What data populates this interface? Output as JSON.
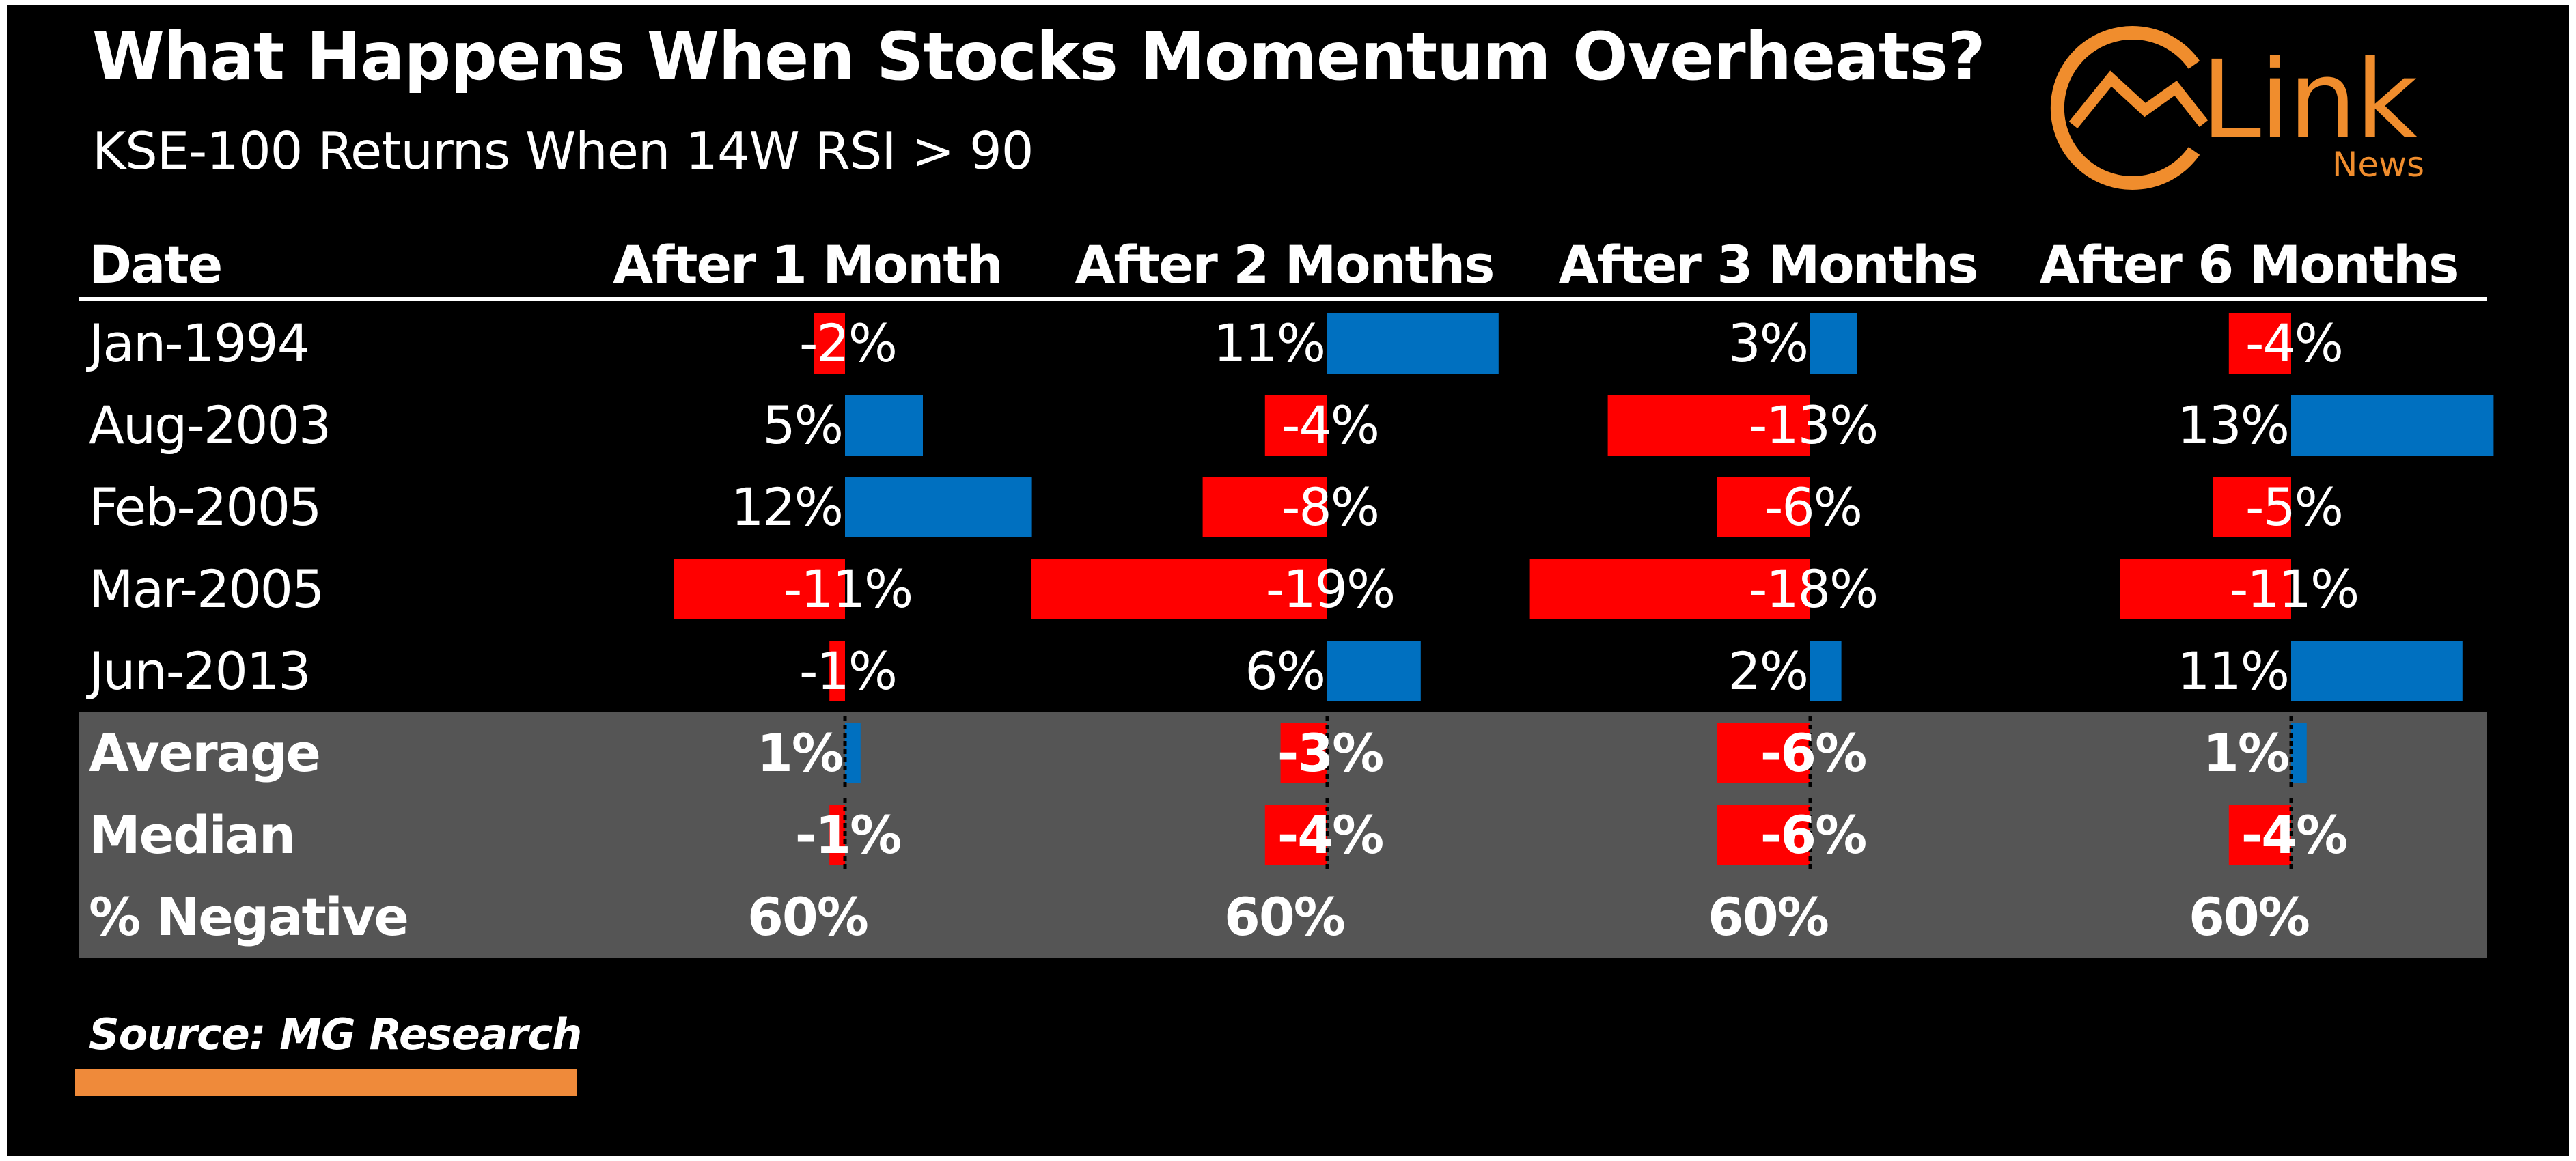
{
  "title": "What Happens When Stocks Momentum Overheats?",
  "subtitle": "KSE-100 Returns When 14W RSI > 90",
  "logo": {
    "name": "Link",
    "sub": "News",
    "icon": "link-news-logo-icon"
  },
  "source": "Source: MG Research",
  "colors": {
    "positive": "#0070c0",
    "negative": "#ff0000",
    "summary_band": "#555555",
    "accent": "#f08d2d"
  },
  "chart_data": {
    "type": "table",
    "columns": [
      "Date",
      "After 1 Month",
      "After 2 Months",
      "After 3 Months",
      "After 6 Months"
    ],
    "rows": [
      {
        "date": "Jan-1994",
        "values": [
          -2,
          11,
          3,
          -4
        ],
        "labels": [
          "-2%",
          "11%",
          "3%",
          "-4%"
        ]
      },
      {
        "date": "Aug-2003",
        "values": [
          5,
          -4,
          -13,
          13
        ],
        "labels": [
          "5%",
          "-4%",
          "-13%",
          "13%"
        ]
      },
      {
        "date": "Feb-2005",
        "values": [
          12,
          -8,
          -6,
          -5
        ],
        "labels": [
          "12%",
          "-8%",
          "-6%",
          "-5%"
        ]
      },
      {
        "date": "Mar-2005",
        "values": [
          -11,
          -19,
          -18,
          -11
        ],
        "labels": [
          "-11%",
          "-19%",
          "-18%",
          "-11%"
        ]
      },
      {
        "date": "Jun-2013",
        "values": [
          -1,
          6,
          2,
          11
        ],
        "labels": [
          "-1%",
          "6%",
          "2%",
          "11%"
        ]
      }
    ],
    "summary": [
      {
        "label": "Average",
        "values": [
          1,
          -3,
          -6,
          1
        ],
        "labels": [
          "1%",
          "-3%",
          "-6%",
          "1%"
        ]
      },
      {
        "label": "Median",
        "values": [
          -1,
          -4,
          -6,
          -4
        ],
        "labels": [
          "-1%",
          "-4%",
          "-6%",
          "-4%"
        ]
      },
      {
        "label": "% Negative",
        "labels": [
          "60%",
          "60%",
          "60%",
          "60%"
        ]
      }
    ]
  }
}
